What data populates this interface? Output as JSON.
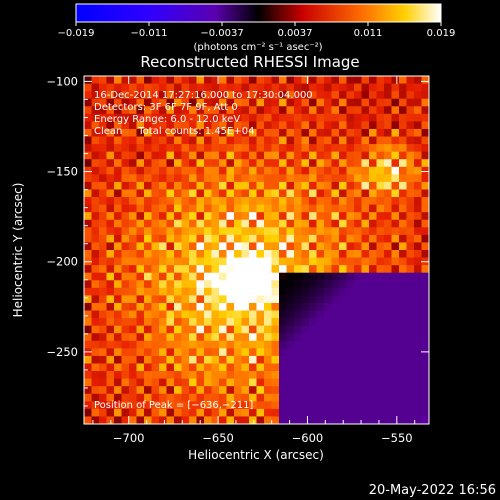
{
  "chart_data": {
    "type": "heatmap",
    "title": "Reconstructed RHESSI Image",
    "xlabel": "Heliocentric X (arcsec)",
    "ylabel": "Heliocentric Y (arcsec)",
    "xlim": [
      -725,
      -532
    ],
    "ylim": [
      -290,
      -97
    ],
    "x_ticks": [
      -700,
      -650,
      -600,
      -550
    ],
    "y_ticks": [
      -100,
      -150,
      -200,
      -250
    ],
    "x_tick_labels": [
      "−700",
      "−650",
      "−600",
      "−550"
    ],
    "y_tick_labels": [
      "−100",
      "−150",
      "−200",
      "−250"
    ],
    "colorbar": {
      "range": [
        -0.019,
        0.019
      ],
      "tick_labels": [
        "−0.019",
        "−0.011",
        "−0.0037",
        "0.0037",
        "0.011",
        "0.019"
      ],
      "unit_label": "(photons cm⁻² s⁻¹ asec⁻²)",
      "colors": [
        "#0000ff",
        "#7a00ff",
        "#000000",
        "#ff2200",
        "#ffa800",
        "#ffffff"
      ]
    },
    "annotations": [
      "16-Dec-2014 17:27:16.000 to 17:30:04.000",
      "Detectors: 3F 6F 7F 9F, Att 0",
      "Energy Range: 6.0 - 12.0 keV",
      "Clean     Total counts: 1.45E+04"
    ],
    "peak_label": "Position of Peak = [−636,−211]",
    "peak_position": [
      -636,
      -211
    ],
    "plot_date": "20-May-2022 16:56"
  }
}
